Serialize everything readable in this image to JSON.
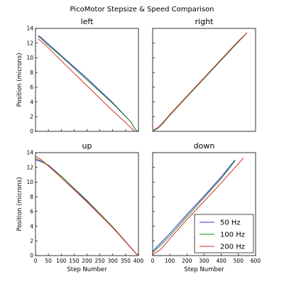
{
  "figure": {
    "title": "PicoMotor Stepsize & Speed Comparison"
  },
  "colors": {
    "50 Hz": "#2b2bd9",
    "100 Hz": "#1a8a1a",
    "200 Hz": "#d92b2b",
    "axes": "#000000"
  },
  "legend": {
    "placement": "lower-right of the down panel",
    "entries": [
      "50 Hz",
      "100 Hz",
      "200 Hz"
    ]
  },
  "chart_data": [
    {
      "type": "line",
      "title": "left",
      "xlabel": "",
      "ylabel": "Position (microns)",
      "xlim": [
        0,
        400
      ],
      "ylim": [
        0,
        14
      ],
      "x_ticks": [
        0,
        50,
        100,
        150,
        200,
        250,
        300,
        350,
        400
      ],
      "x_tick_labels_visible": false,
      "y_ticks": [
        0,
        2,
        4,
        6,
        8,
        10,
        12,
        14
      ],
      "y_tick_labels": [
        "0",
        "2",
        "4",
        "6",
        "8",
        "10",
        "12",
        "14"
      ],
      "grid": false,
      "series": [
        {
          "name": "50 Hz",
          "x": [
            10,
            20,
            40,
            100,
            200,
            300,
            370,
            385,
            395
          ],
          "y": [
            13.0,
            12.8,
            12.2,
            10.3,
            7.2,
            3.9,
            1.3,
            0.4,
            0.0
          ]
        },
        {
          "name": "100 Hz",
          "x": [
            10,
            20,
            40,
            100,
            200,
            300,
            370,
            385,
            395
          ],
          "y": [
            12.9,
            12.7,
            12.0,
            10.2,
            7.0,
            3.8,
            1.3,
            0.4,
            0.0
          ]
        },
        {
          "name": "200 Hz",
          "x": [
            10,
            20,
            40,
            100,
            200,
            300,
            350,
            370,
            385
          ],
          "y": [
            12.6,
            12.3,
            11.7,
            9.6,
            6.2,
            2.8,
            1.2,
            0.5,
            0.0
          ]
        }
      ]
    },
    {
      "type": "line",
      "title": "right",
      "xlabel": "",
      "ylabel": "",
      "xlim": [
        0,
        600
      ],
      "ylim": [
        0,
        14
      ],
      "x_tick_labels_visible": false,
      "y_tick_labels_visible": false,
      "grid": false,
      "series": [
        {
          "name": "50 Hz",
          "x": [
            5,
            30,
            60,
            100,
            200,
            300,
            400,
            500,
            550
          ],
          "y": [
            0.1,
            0.4,
            1.1,
            2.2,
            4.7,
            7.2,
            9.7,
            12.2,
            13.4
          ]
        },
        {
          "name": "100 Hz",
          "x": [
            5,
            30,
            60,
            100,
            200,
            300,
            400,
            500,
            550
          ],
          "y": [
            0.1,
            0.4,
            1.1,
            2.2,
            4.7,
            7.2,
            9.7,
            12.2,
            13.4
          ]
        },
        {
          "name": "200 Hz",
          "x": [
            5,
            30,
            60,
            100,
            200,
            300,
            400,
            500,
            550
          ],
          "y": [
            0.2,
            0.5,
            1.2,
            2.3,
            4.8,
            7.3,
            9.8,
            12.3,
            13.4
          ]
        }
      ]
    },
    {
      "type": "line",
      "title": "up",
      "xlabel": "Step Number",
      "ylabel": "Position (microns)",
      "xlim": [
        0,
        400
      ],
      "ylim": [
        0,
        14
      ],
      "x_ticks": [
        0,
        50,
        100,
        150,
        200,
        250,
        300,
        350,
        400
      ],
      "x_tick_labels": [
        "0",
        "50",
        "100",
        "150",
        "200",
        "250",
        "300",
        "350",
        "400"
      ],
      "y_ticks": [
        0,
        2,
        4,
        6,
        8,
        10,
        12,
        14
      ],
      "y_tick_labels": [
        "0",
        "2",
        "4",
        "6",
        "8",
        "10",
        "12",
        "14"
      ],
      "grid": false,
      "series": [
        {
          "name": "50 Hz",
          "x": [
            0,
            20,
            50,
            100,
            200,
            300,
            390,
            400
          ],
          "y": [
            13.0,
            12.8,
            12.3,
            10.8,
            7.4,
            3.9,
            0.3,
            0.0
          ]
        },
        {
          "name": "100 Hz",
          "x": [
            0,
            20,
            50,
            100,
            200,
            300,
            390,
            400
          ],
          "y": [
            13.2,
            12.9,
            12.2,
            10.8,
            7.5,
            3.9,
            0.3,
            0.0
          ]
        },
        {
          "name": "200 Hz",
          "x": [
            0,
            20,
            50,
            100,
            200,
            300,
            390,
            400
          ],
          "y": [
            13.5,
            13.1,
            12.2,
            10.6,
            7.3,
            3.8,
            0.3,
            0.0
          ]
        }
      ]
    },
    {
      "type": "line",
      "title": "down",
      "xlabel": "Step Number",
      "ylabel": "",
      "xlim": [
        0,
        600
      ],
      "ylim": [
        0,
        14
      ],
      "x_ticks": [
        0,
        100,
        200,
        300,
        400,
        500,
        600
      ],
      "x_tick_labels": [
        "0",
        "100",
        "200",
        "300",
        "400",
        "500",
        "600"
      ],
      "y_tick_labels_visible": false,
      "grid": false,
      "series": [
        {
          "name": "50 Hz",
          "x": [
            0,
            50,
            100,
            200,
            300,
            400,
            480
          ],
          "y": [
            0.6,
            1.8,
            3.0,
            5.6,
            8.1,
            10.7,
            13.0
          ]
        },
        {
          "name": "100 Hz",
          "x": [
            0,
            50,
            100,
            200,
            300,
            400,
            480
          ],
          "y": [
            0.4,
            1.5,
            2.7,
            5.3,
            7.9,
            10.5,
            12.9
          ]
        },
        {
          "name": "200 Hz",
          "x": [
            0,
            50,
            100,
            200,
            300,
            400,
            500,
            530
          ],
          "y": [
            0.1,
            0.9,
            2.3,
            4.9,
            7.4,
            9.9,
            12.5,
            13.3
          ]
        }
      ]
    }
  ]
}
